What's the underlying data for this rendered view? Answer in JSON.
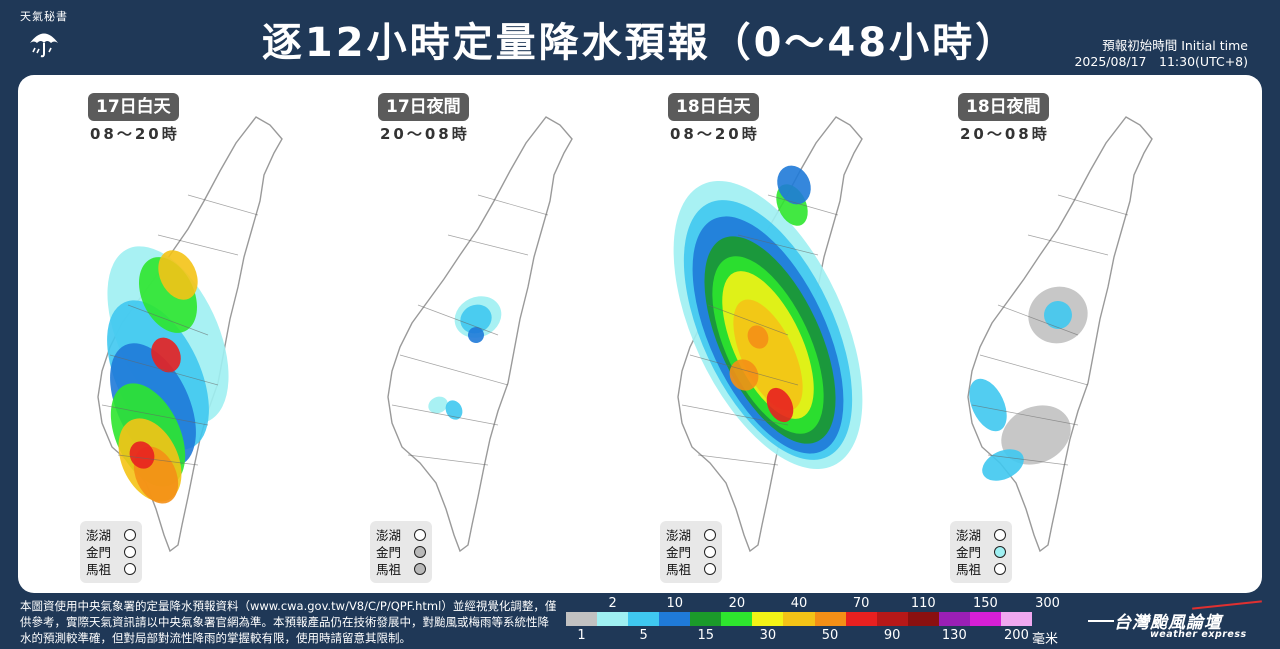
{
  "header": {
    "logo_text": "天氣秘書",
    "title": "逐12小時定量降水預報（0～48小時）",
    "init_label": "預報初始時間 Initial time",
    "init_value": "2025/08/17　11:30(UTC+8)"
  },
  "panels": [
    {
      "label": "17日白天",
      "time": "08～20時",
      "intensity": 0.95,
      "coverage": "west-central",
      "islands": [
        {
          "name": "澎湖",
          "fill": "#ffffff"
        },
        {
          "name": "金門",
          "fill": "#ffffff"
        },
        {
          "name": "馬祖",
          "fill": "#ffffff"
        }
      ]
    },
    {
      "label": "17日夜間",
      "time": "20～08時",
      "intensity": 0.15,
      "coverage": "scattered",
      "islands": [
        {
          "name": "澎湖",
          "fill": "#ffffff"
        },
        {
          "name": "金門",
          "fill": "#b8b8b8"
        },
        {
          "name": "馬祖",
          "fill": "#b8b8b8"
        }
      ]
    },
    {
      "label": "18日白天",
      "time": "08～20時",
      "intensity": 0.9,
      "coverage": "widespread",
      "islands": [
        {
          "name": "澎湖",
          "fill": "#ffffff"
        },
        {
          "name": "金門",
          "fill": "#ffffff"
        },
        {
          "name": "馬祖",
          "fill": "#ffffff"
        }
      ]
    },
    {
      "label": "18日夜間",
      "time": "20～08時",
      "intensity": 0.2,
      "coverage": "central-south",
      "islands": [
        {
          "name": "澎湖",
          "fill": "#ffffff"
        },
        {
          "name": "金門",
          "fill": "#9ff0f2"
        },
        {
          "name": "馬祖",
          "fill": "#ffffff"
        }
      ]
    }
  ],
  "footnote": "本圖資使用中央氣象署的定量降水預報資料（www.cwa.gov.tw/V8/C/P/QPF.html）並經視覺化調整，僅供參考，實際天氣資訊請以中央氣象署官網為準。本預報產品仍在技術發展中，對颱風或梅雨等系統性降水的預測較準確，但對局部對流性降雨的掌握較有限，使用時請留意其限制。",
  "legend": {
    "top_labels": [
      "2",
      "10",
      "20",
      "40",
      "70",
      "110",
      "150",
      "300"
    ],
    "bottom_labels": [
      "1",
      "5",
      "15",
      "30",
      "50",
      "90",
      "130",
      "200"
    ],
    "unit": "毫米",
    "colors": [
      "#c1c1c1",
      "#9ff0f2",
      "#3fc8f0",
      "#1f7ad8",
      "#1b9a2a",
      "#2ee52e",
      "#f3f316",
      "#f4c316",
      "#f48f16",
      "#e82020",
      "#b71818",
      "#8a1010",
      "#9a1fb5",
      "#d61fd6",
      "#f0a8f0"
    ]
  },
  "brand": {
    "name": "台灣颱風論壇",
    "sub": "weather express"
  }
}
